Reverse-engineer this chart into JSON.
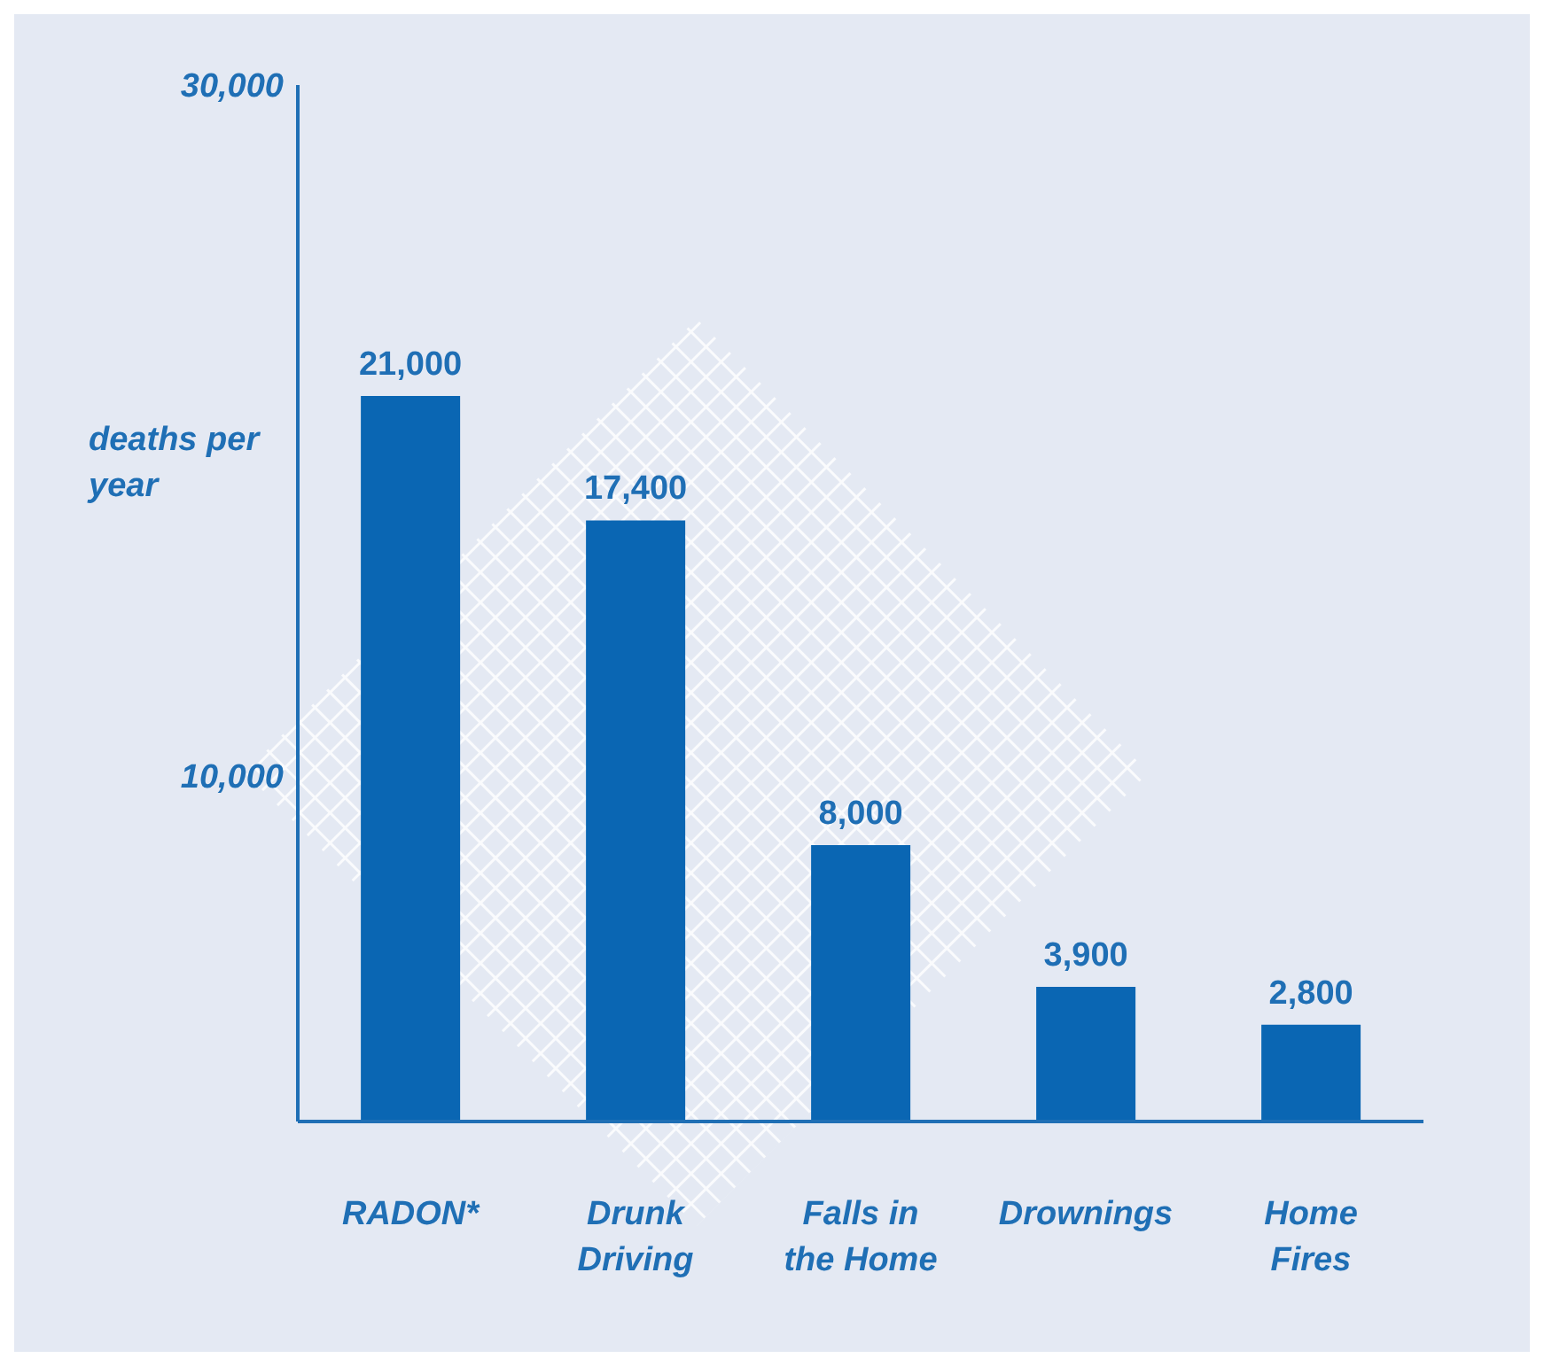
{
  "chart_data": {
    "type": "bar",
    "ylabel": "deaths per year",
    "categories": [
      "RADON*",
      "Drunk Driving",
      "Falls in the Home",
      "Drownings",
      "Home Fires"
    ],
    "values": [
      21000,
      17400,
      8000,
      3900,
      2800
    ],
    "color": "#0a66b3",
    "value_labels": [
      "21,000",
      "17,400",
      "8,000",
      "3,900",
      "2,800"
    ],
    "ylim": [
      0,
      30000
    ],
    "yticks": [
      {
        "value": 10000,
        "label": "10,000"
      },
      {
        "value": 30000,
        "label": "30,000"
      }
    ]
  }
}
